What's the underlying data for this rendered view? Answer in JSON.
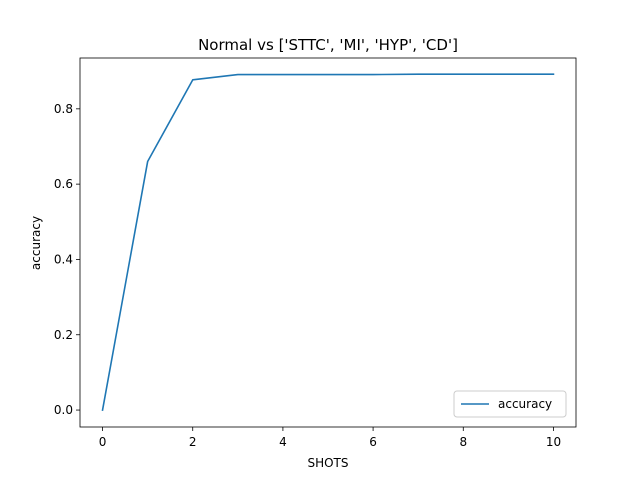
{
  "chart_data": {
    "type": "line",
    "title": "Normal vs ['STTC', 'MI', 'HYP', 'CD']",
    "xlabel": "SHOTS",
    "ylabel": "accuracy",
    "xlim": [
      -0.5,
      10.5
    ],
    "ylim": [
      -0.045,
      0.935
    ],
    "xticks": [
      0,
      2,
      4,
      6,
      8,
      10
    ],
    "xtick_labels": [
      "0",
      "2",
      "4",
      "6",
      "8",
      "10"
    ],
    "yticks": [
      0.0,
      0.2,
      0.4,
      0.6,
      0.8
    ],
    "ytick_labels": [
      "0.0",
      "0.2",
      "0.4",
      "0.6",
      "0.8"
    ],
    "grid": false,
    "legend_position": "lower-right",
    "series": [
      {
        "name": "accuracy",
        "color": "#1f77b4",
        "x": [
          0,
          1,
          2,
          3,
          4,
          5,
          6,
          7,
          8,
          9,
          10
        ],
        "y": [
          0.0,
          0.66,
          0.877,
          0.891,
          0.891,
          0.891,
          0.891,
          0.892,
          0.892,
          0.892,
          0.892
        ]
      }
    ]
  }
}
